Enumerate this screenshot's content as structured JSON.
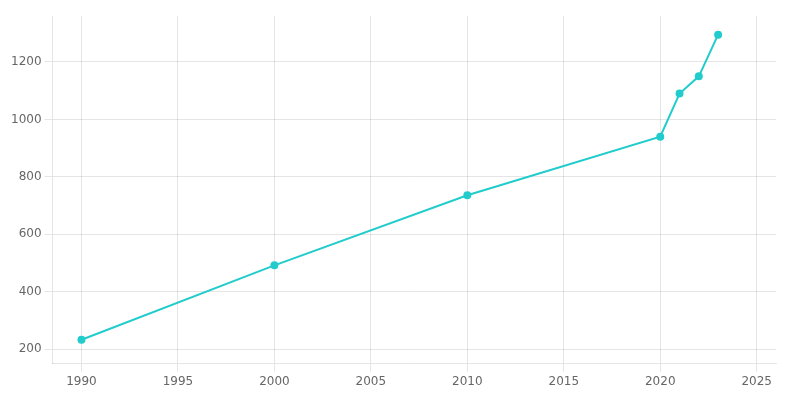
{
  "chart_data": {
    "type": "line",
    "x": [
      1990,
      2000,
      2010,
      2020,
      2021,
      2022,
      2023
    ],
    "values": [
      233,
      492,
      736,
      940,
      1090,
      1150,
      1295
    ],
    "color": "#22CCCC",
    "marker": "circle",
    "xlim": [
      1988.5,
      2026
    ],
    "ylim": [
      150,
      1360
    ],
    "xticks": [
      1990,
      1995,
      2000,
      2005,
      2010,
      2015,
      2020,
      2025
    ],
    "yticks": [
      200,
      400,
      600,
      800,
      1000,
      1200
    ],
    "grid": true
  }
}
